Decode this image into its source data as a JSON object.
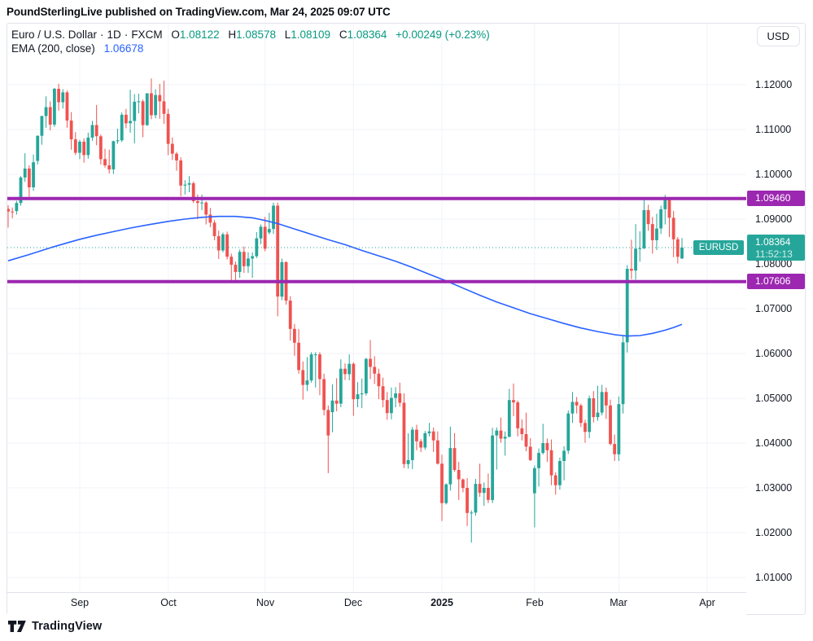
{
  "header": {
    "attribution": "PoundSterlingLive published on TradingView.com, Mar 24, 2025 09:07 UTC"
  },
  "legend": {
    "title": "Euro / U.S. Dollar",
    "dot": "·",
    "interval": "1D",
    "exchange": "FXCM",
    "o_label": "O",
    "o_value": "1.08122",
    "h_label": "H",
    "h_value": "1.08578",
    "l_label": "L",
    "l_value": "1.08109",
    "c_label": "C",
    "c_value": "1.08364",
    "change": "+0.00249 (+0.23%)",
    "ema_label": "EMA (200, close)",
    "ema_value": "1.06678"
  },
  "toolbar": {
    "currency": "USD"
  },
  "price_axis": {
    "labels": [
      "1.12000",
      "1.11000",
      "1.10000",
      "1.09000",
      "1.08000",
      "1.07000",
      "1.06000",
      "1.05000",
      "1.04000",
      "1.03000",
      "1.02000",
      "1.01000"
    ]
  },
  "time_axis": {
    "ticks": [
      {
        "label": "Sep",
        "index": 17,
        "bold": false
      },
      {
        "label": "Oct",
        "index": 38,
        "bold": false
      },
      {
        "label": "Nov",
        "index": 61,
        "bold": false
      },
      {
        "label": "Dec",
        "index": 82,
        "bold": false
      },
      {
        "label": "2025",
        "index": 103,
        "bold": true
      },
      {
        "label": "Feb",
        "index": 125,
        "bold": false
      },
      {
        "label": "Mar",
        "index": 145,
        "bold": false
      },
      {
        "label": "Apr",
        "index": 166,
        "bold": false
      }
    ]
  },
  "price_lines": [
    {
      "label": "1.09460",
      "price": 1.0946,
      "color": "#9c27b0"
    },
    {
      "label": "1.07606",
      "price": 1.07606,
      "color": "#9c27b0"
    }
  ],
  "current_price": {
    "symbol_tag": "EURUSD",
    "value": "1.08364",
    "price": 1.08364,
    "countdown": "11:52:13",
    "color": "#26a69a"
  },
  "footer": {
    "brand": "TradingView"
  },
  "chart_data": {
    "type": "candlestick",
    "title": "Euro / U.S. Dollar",
    "symbol": "EURUSD",
    "interval": "1D",
    "exchange": "FXCM",
    "legend_ohlc": {
      "open": 1.08122,
      "high": 1.08578,
      "low": 1.08109,
      "close": 1.08364,
      "change": "+0.00249 (+0.23%)"
    },
    "y_axis": {
      "min": 1.0067,
      "max": 1.1235,
      "tick_step": 0.01,
      "grid": true
    },
    "x_axis": {
      "month_labels": [
        "Sep",
        "Oct",
        "Nov",
        "Dec",
        "2025",
        "Feb",
        "Mar",
        "Apr"
      ],
      "grid": true
    },
    "colors": {
      "up": "#26a69a",
      "down": "#ef5350",
      "grid": "#f0f3fa",
      "border": "#e0e3eb",
      "text": "#131722",
      "level_line": "#9c27b0",
      "price_line": "#26a69a"
    },
    "horizontal_levels": [
      1.0946,
      1.07606
    ],
    "price_line_value": 1.08364,
    "candles": [
      [
        1.0923,
        1.0931,
        1.0881,
        1.0917
      ],
      [
        1.0917,
        1.0926,
        1.0902,
        1.0916
      ],
      [
        1.0918,
        1.0941,
        1.091,
        1.0936
      ],
      [
        1.0936,
        1.0996,
        1.093,
        1.0993
      ],
      [
        1.0993,
        1.1047,
        1.0983,
        1.1013
      ],
      [
        1.1013,
        1.102,
        1.095,
        1.0971
      ],
      [
        1.0971,
        1.1044,
        1.0963,
        1.1027
      ],
      [
        1.103,
        1.1087,
        1.1022,
        1.1086
      ],
      [
        1.1086,
        1.1131,
        1.1066,
        1.113
      ],
      [
        1.113,
        1.1174,
        1.1104,
        1.115
      ],
      [
        1.115,
        1.1163,
        1.1098,
        1.1111
      ],
      [
        1.1111,
        1.1193,
        1.1106,
        1.1191
      ],
      [
        1.1191,
        1.1202,
        1.1142,
        1.1161
      ],
      [
        1.1161,
        1.119,
        1.1147,
        1.1183
      ],
      [
        1.1183,
        1.1187,
        1.1104,
        1.112
      ],
      [
        1.112,
        1.1139,
        1.1055,
        1.1078
      ],
      [
        1.1078,
        1.1094,
        1.1043,
        1.1048
      ],
      [
        1.1048,
        1.1077,
        1.1034,
        1.1073
      ],
      [
        1.1073,
        1.108,
        1.1026,
        1.1043
      ],
      [
        1.1043,
        1.1093,
        1.1035,
        1.1082
      ],
      [
        1.1082,
        1.1119,
        1.1075,
        1.111
      ],
      [
        1.111,
        1.1155,
        1.1065,
        1.1085
      ],
      [
        1.1085,
        1.1089,
        1.1022,
        1.1034
      ],
      [
        1.1034,
        1.1057,
        1.1015,
        1.102
      ],
      [
        1.102,
        1.1055,
        1.1002,
        1.1011
      ],
      [
        1.1011,
        1.1075,
        1.1001,
        1.1074
      ],
      [
        1.1074,
        1.1102,
        1.1068,
        1.1076
      ],
      [
        1.1076,
        1.1138,
        1.1072,
        1.1133
      ],
      [
        1.1133,
        1.1146,
        1.1103,
        1.1114
      ],
      [
        1.1114,
        1.1189,
        1.1093,
        1.1119
      ],
      [
        1.1119,
        1.1179,
        1.1069,
        1.1162
      ],
      [
        1.1162,
        1.118,
        1.1136,
        1.1163
      ],
      [
        1.1163,
        1.1167,
        1.1083,
        1.111
      ],
      [
        1.111,
        1.1181,
        1.1108,
        1.1181
      ],
      [
        1.1181,
        1.1214,
        1.1123,
        1.1132
      ],
      [
        1.1132,
        1.119,
        1.1125,
        1.1177
      ],
      [
        1.1177,
        1.1202,
        1.1124,
        1.1163
      ],
      [
        1.1163,
        1.1209,
        1.1113,
        1.1135
      ],
      [
        1.1135,
        1.1146,
        1.1043,
        1.1068
      ],
      [
        1.1068,
        1.1082,
        1.1032,
        1.1046
      ],
      [
        1.1046,
        1.105,
        1.1008,
        1.1031
      ],
      [
        1.1031,
        1.1038,
        1.0951,
        1.0975
      ],
      [
        1.0975,
        1.0987,
        1.0955,
        1.0977
      ],
      [
        1.0977,
        1.0996,
        1.096,
        1.098
      ],
      [
        1.098,
        1.0984,
        1.0936,
        1.094
      ],
      [
        1.094,
        1.0955,
        1.09,
        1.0936
      ],
      [
        1.0936,
        1.0955,
        1.092,
        1.0937
      ],
      [
        1.0937,
        1.094,
        1.0888,
        1.091
      ],
      [
        1.091,
        1.0925,
        1.0882,
        1.0892
      ],
      [
        1.0892,
        1.0898,
        1.0853,
        1.0862
      ],
      [
        1.0862,
        1.0874,
        1.0811,
        1.083
      ],
      [
        1.083,
        1.087,
        1.0826,
        1.0866
      ],
      [
        1.0866,
        1.0872,
        1.081,
        1.0816
      ],
      [
        1.0816,
        1.0823,
        1.0761,
        1.0798
      ],
      [
        1.0798,
        1.0805,
        1.0761,
        1.0782
      ],
      [
        1.0782,
        1.0832,
        1.0769,
        1.0827
      ],
      [
        1.0827,
        1.0839,
        1.078,
        1.0795
      ],
      [
        1.0795,
        1.0826,
        1.078,
        1.0812
      ],
      [
        1.0812,
        1.0826,
        1.0769,
        1.0817
      ],
      [
        1.0817,
        1.0871,
        1.0813,
        1.0857
      ],
      [
        1.0857,
        1.0888,
        1.0844,
        1.0883
      ],
      [
        1.0883,
        1.0905,
        1.0828,
        1.0834
      ],
      [
        1.087,
        1.0914,
        1.0866,
        1.0878
      ],
      [
        1.0878,
        1.0937,
        1.0867,
        1.093
      ],
      [
        1.093,
        1.0937,
        1.0683,
        1.0727
      ],
      [
        1.0727,
        1.0812,
        1.0719,
        1.0804
      ],
      [
        1.0804,
        1.0806,
        1.0709,
        1.0718
      ],
      [
        1.0718,
        1.0728,
        1.0629,
        1.0655
      ],
      [
        1.0655,
        1.0666,
        1.0595,
        1.0624
      ],
      [
        1.0624,
        1.0655,
        1.0555,
        1.0563
      ],
      [
        1.0563,
        1.0582,
        1.0497,
        1.053
      ],
      [
        1.053,
        1.0592,
        1.0516,
        1.054
      ],
      [
        1.054,
        1.0603,
        1.0535,
        1.0598
      ],
      [
        1.0598,
        1.0603,
        1.0524,
        1.0598
      ],
      [
        1.0598,
        1.0603,
        1.0507,
        1.0543
      ],
      [
        1.0543,
        1.0555,
        1.0462,
        1.0474
      ],
      [
        1.0474,
        1.0484,
        1.0333,
        1.0417
      ],
      [
        1.0469,
        1.0531,
        1.0424,
        1.0495
      ],
      [
        1.0495,
        1.0545,
        1.0471,
        1.0488
      ],
      [
        1.0488,
        1.0587,
        1.048,
        1.0566
      ],
      [
        1.0566,
        1.0578,
        1.0541,
        1.0554
      ],
      [
        1.0554,
        1.0598,
        1.054,
        1.0577
      ],
      [
        1.0577,
        1.058,
        1.0461,
        1.0498
      ],
      [
        1.0498,
        1.0536,
        1.048,
        1.0509
      ],
      [
        1.0509,
        1.0544,
        1.0478,
        1.0511
      ],
      [
        1.0511,
        1.059,
        1.0506,
        1.0588
      ],
      [
        1.0588,
        1.063,
        1.0543,
        1.057
      ],
      [
        1.057,
        1.0594,
        1.0532,
        1.0555
      ],
      [
        1.0555,
        1.0566,
        1.0498,
        1.0527
      ],
      [
        1.0527,
        1.0546,
        1.048,
        1.0496
      ],
      [
        1.0496,
        1.0514,
        1.0452,
        1.0467
      ],
      [
        1.0467,
        1.0524,
        1.0453,
        1.0501
      ],
      [
        1.0501,
        1.0525,
        1.048,
        1.0511
      ],
      [
        1.0511,
        1.0535,
        1.0481,
        1.049
      ],
      [
        1.049,
        1.0511,
        1.0344,
        1.0353
      ],
      [
        1.0353,
        1.0422,
        1.0343,
        1.0362
      ],
      [
        1.0362,
        1.0436,
        1.0342,
        1.043
      ],
      [
        1.043,
        1.0441,
        1.0384,
        1.0404
      ],
      [
        1.0404,
        1.0409,
        1.038,
        1.039
      ],
      [
        1.039,
        1.0427,
        1.0385,
        1.0422
      ],
      [
        1.0422,
        1.0445,
        1.0415,
        1.0426
      ],
      [
        1.0426,
        1.0435,
        1.038,
        1.0406
      ],
      [
        1.0406,
        1.0426,
        1.0352,
        1.0354
      ],
      [
        1.0354,
        1.0374,
        1.0226,
        1.0266
      ],
      [
        1.0266,
        1.031,
        1.0263,
        1.0308
      ],
      [
        1.0308,
        1.0437,
        1.0294,
        1.0389
      ],
      [
        1.0389,
        1.0422,
        1.0336,
        1.034
      ],
      [
        1.034,
        1.0358,
        1.0273,
        1.0319
      ],
      [
        1.0319,
        1.0321,
        1.029,
        1.03
      ],
      [
        1.03,
        1.0322,
        1.0215,
        1.0244
      ],
      [
        1.0244,
        1.025,
        1.0178,
        1.0245
      ],
      [
        1.0245,
        1.032,
        1.0238,
        1.0309
      ],
      [
        1.0309,
        1.0354,
        1.028,
        1.0289
      ],
      [
        1.0289,
        1.0312,
        1.026,
        1.03
      ],
      [
        1.03,
        1.0332,
        1.0266,
        1.0273
      ],
      [
        1.0273,
        1.0434,
        1.0266,
        1.0417
      ],
      [
        1.0417,
        1.0435,
        1.0341,
        1.0428
      ],
      [
        1.0428,
        1.0457,
        1.0401,
        1.041
      ],
      [
        1.041,
        1.0426,
        1.0372,
        1.0414
      ],
      [
        1.0414,
        1.0521,
        1.0413,
        1.0496
      ],
      [
        1.0496,
        1.0533,
        1.046,
        1.0491
      ],
      [
        1.0491,
        1.0495,
        1.0415,
        1.0433
      ],
      [
        1.0433,
        1.0453,
        1.0406,
        1.042
      ],
      [
        1.042,
        1.0468,
        1.0382,
        1.0392
      ],
      [
        1.0392,
        1.0411,
        1.036,
        1.0362
      ],
      [
        1.0288,
        1.035,
        1.0212,
        1.0344
      ],
      [
        1.0344,
        1.0388,
        1.0303,
        1.0378
      ],
      [
        1.0378,
        1.0443,
        1.0375,
        1.04
      ],
      [
        1.04,
        1.041,
        1.0358,
        1.0384
      ],
      [
        1.0384,
        1.0408,
        1.0306,
        1.0328
      ],
      [
        1.0328,
        1.0335,
        1.0285,
        1.0306
      ],
      [
        1.0306,
        1.0368,
        1.0296,
        1.036
      ],
      [
        1.036,
        1.0393,
        1.0317,
        1.0383
      ],
      [
        1.0383,
        1.0473,
        1.0376,
        1.0466
      ],
      [
        1.0466,
        1.0514,
        1.0445,
        1.0492
      ],
      [
        1.0492,
        1.0503,
        1.0466,
        1.0484
      ],
      [
        1.0484,
        1.0488,
        1.0436,
        1.0445
      ],
      [
        1.0445,
        1.0452,
        1.0401,
        1.0425
      ],
      [
        1.0425,
        1.0506,
        1.0411,
        1.05
      ],
      [
        1.05,
        1.0516,
        1.0446,
        1.0458
      ],
      [
        1.0458,
        1.0528,
        1.045,
        1.0468
      ],
      [
        1.0468,
        1.053,
        1.0462,
        1.0514
      ],
      [
        1.0514,
        1.0524,
        1.0454,
        1.0484
      ],
      [
        1.0484,
        1.0497,
        1.0395,
        1.0398
      ],
      [
        1.0398,
        1.0419,
        1.036,
        1.0375
      ],
      [
        1.0375,
        1.0504,
        1.036,
        1.0487
      ],
      [
        1.0487,
        1.0639,
        1.0466,
        1.0625
      ],
      [
        1.0625,
        1.0797,
        1.0602,
        1.0789
      ],
      [
        1.0789,
        1.0854,
        1.0766,
        1.0785
      ],
      [
        1.0785,
        1.0889,
        1.0765,
        1.0834
      ],
      [
        1.0834,
        1.0873,
        1.0805,
        1.0835
      ],
      [
        1.0835,
        1.0947,
        1.0833,
        1.092
      ],
      [
        1.092,
        1.0932,
        1.0874,
        1.0889
      ],
      [
        1.0889,
        1.0905,
        1.0823,
        1.0853
      ],
      [
        1.0853,
        1.0912,
        1.0831,
        1.0879
      ],
      [
        1.0879,
        1.093,
        1.0867,
        1.0922
      ],
      [
        1.0922,
        1.0954,
        1.0888,
        1.0943
      ],
      [
        1.0943,
        1.0946,
        1.086,
        1.0903
      ],
      [
        1.0903,
        1.0918,
        1.0815,
        1.0855
      ],
      [
        1.0855,
        1.086,
        1.0801,
        1.0816
      ],
      [
        1.08122,
        1.08578,
        1.08109,
        1.08364
      ]
    ],
    "ema200": {
      "label": "EMA (200, close)",
      "current_value": 1.06678,
      "color": "#2962ff",
      "points": [
        [
          0,
          1.0807
        ],
        [
          5,
          1.0821
        ],
        [
          10,
          1.0836
        ],
        [
          14,
          1.0847
        ],
        [
          17,
          1.0855
        ],
        [
          21,
          1.0864
        ],
        [
          25,
          1.0872
        ],
        [
          29,
          1.088
        ],
        [
          33,
          1.0887
        ],
        [
          38,
          1.0895
        ],
        [
          42,
          1.09
        ],
        [
          46,
          1.0904
        ],
        [
          50,
          1.0906
        ],
        [
          54,
          1.0906
        ],
        [
          58,
          1.0903
        ],
        [
          61,
          1.0897
        ],
        [
          64,
          1.089
        ],
        [
          68,
          1.0878
        ],
        [
          72,
          1.0866
        ],
        [
          76,
          1.0854
        ],
        [
          80,
          1.0843
        ],
        [
          84,
          1.083
        ],
        [
          88,
          1.0818
        ],
        [
          92,
          1.0806
        ],
        [
          96,
          1.0792
        ],
        [
          100,
          1.0777
        ],
        [
          104,
          1.0762
        ],
        [
          108,
          1.0746
        ],
        [
          112,
          1.073
        ],
        [
          116,
          1.0715
        ],
        [
          120,
          1.0702
        ],
        [
          124,
          1.0689
        ],
        [
          128,
          1.0678
        ],
        [
          132,
          1.0667
        ],
        [
          136,
          1.0657
        ],
        [
          140,
          1.0649
        ],
        [
          144,
          1.0642
        ],
        [
          147,
          1.0639
        ],
        [
          150,
          1.064
        ],
        [
          153,
          1.0645
        ],
        [
          156,
          1.0652
        ],
        [
          158,
          1.0658
        ],
        [
          160,
          1.0665
        ]
      ]
    }
  }
}
